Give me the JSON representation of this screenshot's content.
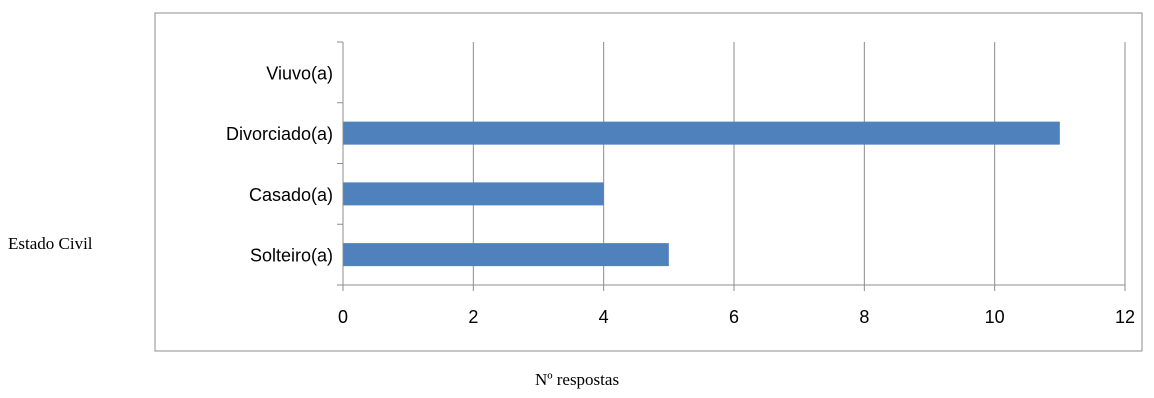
{
  "chart_data": {
    "type": "bar",
    "orientation": "horizontal",
    "categories": [
      "Solteiro(a)",
      "Casado(a)",
      "Divorciado(a)",
      "Viuvo(a)"
    ],
    "values": [
      5,
      4,
      11,
      0
    ],
    "ylabel": "Estado Civil",
    "xlabel": "Nº respostas",
    "xlim": [
      0,
      12
    ],
    "xticks": [
      0,
      2,
      4,
      6,
      8,
      10,
      12
    ],
    "grid": "vertical",
    "bar_color": "#4F81BD"
  }
}
